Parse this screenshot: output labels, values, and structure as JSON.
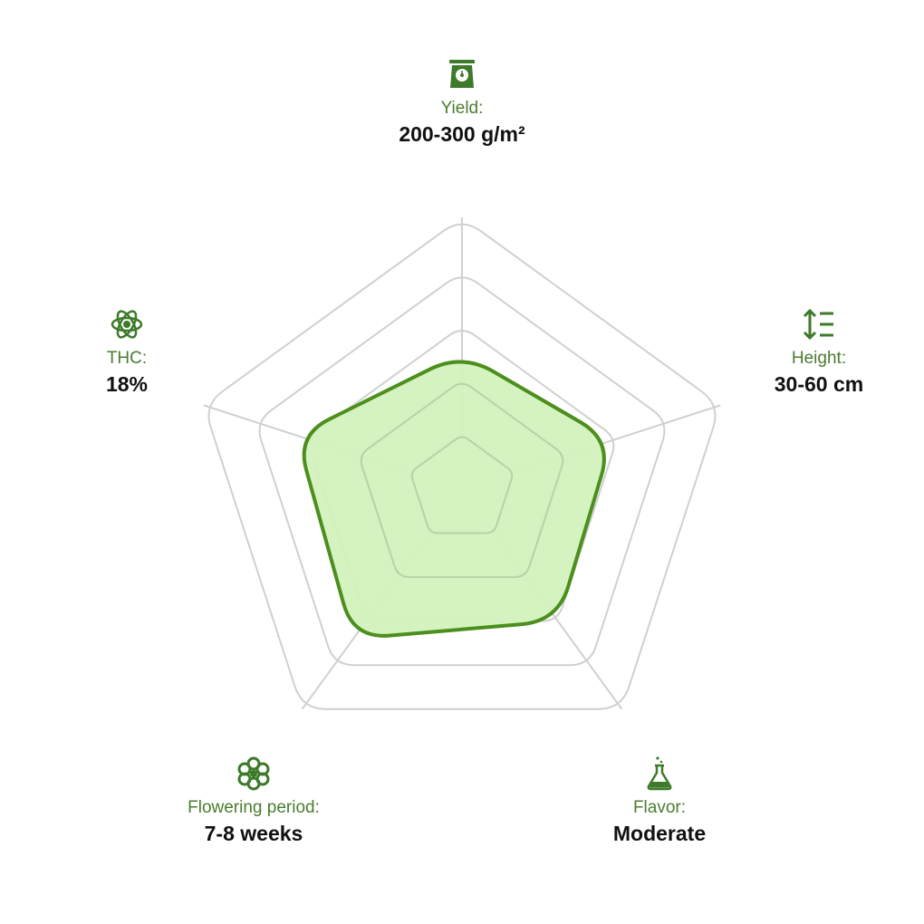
{
  "colors": {
    "accent": "#4c8f1c",
    "fill": "#d2f2bd",
    "grid": "#d0d0d0",
    "label": "#4a7c2f",
    "icon": "#3d7a2a"
  },
  "axes": [
    {
      "key": "yield",
      "icon": "scale-icon",
      "label": "Yield:",
      "value": "200-300 g/m²"
    },
    {
      "key": "height",
      "icon": "height-icon",
      "label": "Height:",
      "value": "30-60 cm"
    },
    {
      "key": "flavor",
      "icon": "flask-icon",
      "label": "Flavor:",
      "value": "Moderate"
    },
    {
      "key": "flowering",
      "icon": "flower-icon",
      "label": "Flowering period:",
      "value": "7-8 weeks"
    },
    {
      "key": "thc",
      "icon": "atom-icon",
      "label": "THC:",
      "value": "18%"
    }
  ],
  "chart_data": {
    "type": "radar",
    "categories": [
      "Yield",
      "Height",
      "Flavor",
      "Flowering period",
      "THC"
    ],
    "levels": 5,
    "range": [
      0,
      5
    ],
    "values": [
      2.5,
      2.9,
      3.0,
      3.4,
      3.2
    ],
    "grid": true
  }
}
